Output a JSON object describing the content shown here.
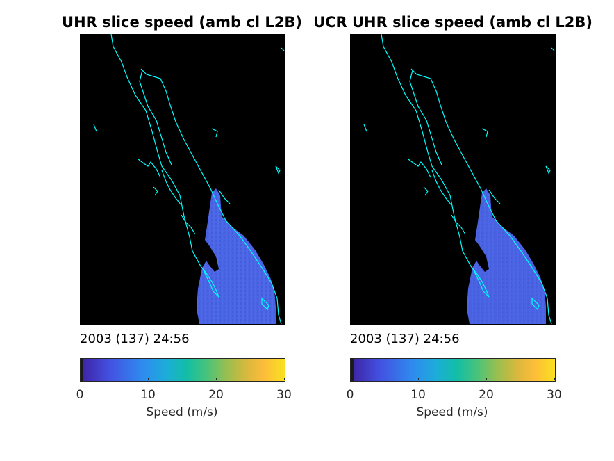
{
  "panels": [
    {
      "title": "UHR slice speed (amb cl L2B)",
      "timestamp": "2003 (137) 24:56",
      "colorbar": {
        "ticks": [
          "0",
          "10",
          "20",
          "30"
        ],
        "label": "Speed (m/s)",
        "range": [
          0,
          30
        ]
      }
    },
    {
      "title": "UCR UHR slice speed (amb cl L2B)",
      "timestamp": "2003 (137) 24:56",
      "colorbar": {
        "ticks": [
          "0",
          "10",
          "20",
          "30"
        ],
        "label": "Speed (m/s)",
        "range": [
          0,
          30
        ]
      }
    }
  ],
  "colors": {
    "background": "#000000",
    "coastline": "#00ffff",
    "wind_field": "#4a66e6"
  }
}
